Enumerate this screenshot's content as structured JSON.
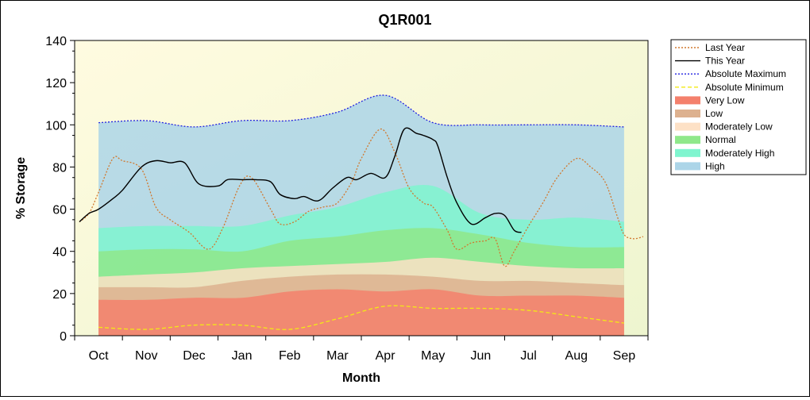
{
  "chart_data": {
    "type": "area",
    "title": "Q1R001",
    "xlabel": "Month",
    "ylabel": "% Storage",
    "ylim": [
      0,
      140
    ],
    "yticks": [
      0,
      20,
      40,
      60,
      80,
      100,
      120,
      140
    ],
    "categories": [
      "Oct",
      "Nov",
      "Dec",
      "Jan",
      "Feb",
      "Mar",
      "Apr",
      "May",
      "Jun",
      "Jul",
      "Aug",
      "Sep"
    ],
    "grid": false,
    "legend_position": "right",
    "bands": [
      {
        "name": "Very Low",
        "color": "#f4806c",
        "values": [
          17,
          17,
          18,
          18,
          21,
          22,
          21,
          22,
          19,
          19,
          19,
          18
        ]
      },
      {
        "name": "Low",
        "color": "#ddb18f",
        "values": [
          23,
          23,
          23,
          26,
          28,
          29,
          29,
          28,
          26,
          26,
          25,
          24
        ]
      },
      {
        "name": "Moderately Low",
        "color": "#fde1c6",
        "values": [
          28,
          29,
          30,
          32,
          33,
          34,
          35,
          37,
          35,
          33,
          32,
          32
        ]
      },
      {
        "name": "Normal",
        "color": "#8fe88a",
        "values": [
          40,
          41,
          41,
          40,
          45,
          47,
          50,
          51,
          48,
          44,
          42,
          42
        ]
      },
      {
        "name": "Moderately High",
        "color": "#7ff5cf",
        "values": [
          51,
          52,
          52,
          52,
          57,
          61,
          68,
          71,
          58,
          55,
          56,
          54
        ]
      },
      {
        "name": "High",
        "color": "#acd5e8",
        "values": [
          101,
          102,
          99,
          102,
          102,
          106,
          114,
          101,
          100,
          100,
          100,
          99
        ]
      }
    ],
    "series": [
      {
        "name": "Last Year",
        "color": "#d1782f",
        "style": "dotted",
        "x": [
          -0.4,
          -0.2,
          0,
          0.3,
          0.5,
          0.9,
          1.2,
          1.5,
          1.9,
          2.3,
          2.6,
          2.95,
          3.2,
          3.6,
          3.8,
          4.1,
          4.4,
          4.7,
          5.0,
          5.3,
          5.5,
          5.9,
          6.2,
          6.5,
          6.8,
          7.0,
          7.3,
          7.5,
          7.8,
          8.1,
          8.3,
          8.5,
          8.7,
          9.0,
          9.3,
          9.6,
          10.0,
          10.3,
          10.6,
          10.85,
          11.0,
          11.2,
          11.4
        ],
        "y": [
          54,
          58,
          68,
          84,
          83,
          79,
          61,
          55,
          49,
          41,
          51,
          71,
          75,
          60,
          53,
          54,
          59,
          61,
          63,
          73,
          84,
          98,
          87,
          70,
          63,
          61,
          50,
          41,
          44,
          45,
          46,
          33,
          40,
          52,
          63,
          75,
          84,
          80,
          73,
          57,
          48,
          46,
          47
        ]
      },
      {
        "name": "This Year",
        "color": "#000000",
        "style": "solid",
        "x": [
          -0.4,
          -0.2,
          0,
          0.3,
          0.5,
          0.9,
          1.2,
          1.5,
          1.8,
          2.1,
          2.5,
          2.7,
          3.0,
          3.3,
          3.6,
          3.8,
          4.1,
          4.3,
          4.6,
          4.9,
          5.2,
          5.4,
          5.7,
          6.0,
          6.2,
          6.4,
          6.65,
          6.8,
          7.0,
          7.1,
          7.3,
          7.5,
          7.8,
          8.1,
          8.3,
          8.5,
          8.7,
          8.85
        ],
        "y": [
          54,
          58,
          60,
          65,
          69,
          80,
          83,
          82,
          82,
          72,
          71,
          74,
          74,
          74,
          73,
          67,
          65,
          66,
          64,
          70,
          75,
          74,
          77,
          75,
          85,
          98,
          96,
          95,
          93,
          90,
          75,
          63,
          53,
          56,
          58,
          57,
          50,
          49
        ]
      },
      {
        "name": "Absolute Maximum",
        "color": "#2020e0",
        "style": "dotted",
        "x": [
          0,
          1,
          2,
          3,
          4,
          5,
          6,
          7,
          8,
          9,
          10,
          11
        ],
        "y": [
          101,
          102,
          99,
          102,
          102,
          106,
          114,
          101,
          100,
          100,
          100,
          99
        ]
      },
      {
        "name": "Absolute Minimum",
        "color": "#f2ea14",
        "style": "dashed",
        "x": [
          0,
          1,
          2,
          3,
          4,
          5,
          6,
          7,
          8,
          9,
          10,
          11
        ],
        "y": [
          4,
          3,
          5,
          5,
          3,
          8,
          14,
          13,
          13,
          12,
          9,
          6
        ]
      }
    ],
    "legend": [
      "Last Year",
      "This Year",
      "Absolute Maximum",
      "Absolute Minimum",
      "Very Low",
      "Low",
      "Moderately Low",
      "Normal",
      "Moderately High",
      "High"
    ]
  }
}
